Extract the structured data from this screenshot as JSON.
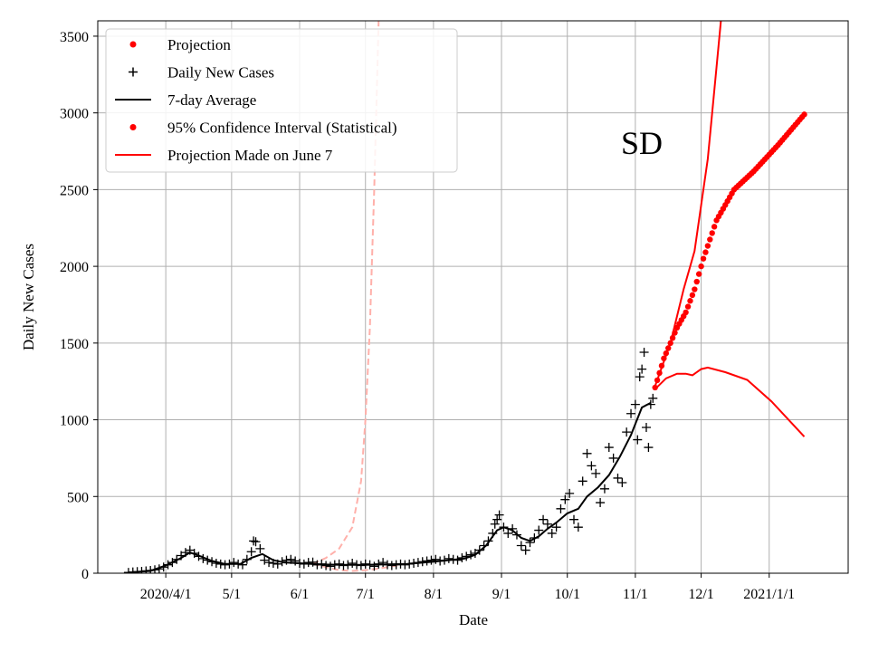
{
  "chart_data": {
    "type": "line",
    "panel_label": "SD",
    "xlabel": "Date",
    "ylabel": "Daily New Cases",
    "xlim": [
      "2020-03-01",
      "2021-02-06"
    ],
    "ylim": [
      0,
      3600
    ],
    "grid": true,
    "legend_position": "top-left",
    "x_ticks": [
      {
        "date": "2020-04-01",
        "label": "2020/4/1"
      },
      {
        "date": "2020-05-01",
        "label": "5/1"
      },
      {
        "date": "2020-06-01",
        "label": "6/1"
      },
      {
        "date": "2020-07-01",
        "label": "7/1"
      },
      {
        "date": "2020-08-01",
        "label": "8/1"
      },
      {
        "date": "2020-09-01",
        "label": "9/1"
      },
      {
        "date": "2020-10-01",
        "label": "10/1"
      },
      {
        "date": "2020-11-01",
        "label": "11/1"
      },
      {
        "date": "2020-12-01",
        "label": "12/1"
      },
      {
        "date": "2021-01-01",
        "label": "2021/1/1"
      }
    ],
    "y_ticks": [
      0,
      500,
      1000,
      1500,
      2000,
      2500,
      3000,
      3500
    ],
    "colors": {
      "projection": "#ff0000",
      "daily": "#000000",
      "average": "#000000",
      "june7": "#ffb0aa",
      "grid": "#b0b0b0"
    },
    "legend": [
      {
        "label": "Projection",
        "marker": "dot",
        "color": "#ff0000"
      },
      {
        "label": "Daily New Cases",
        "marker": "plus",
        "color": "#000000"
      },
      {
        "label": "7-day Average",
        "marker": "line",
        "color": "#000000"
      },
      {
        "label": "95% Confidence Interval (Statistical)",
        "marker": "dot",
        "color": "#ff0000"
      },
      {
        "label": "Projection Made on June 7",
        "marker": "line",
        "color": "#ff0000"
      }
    ],
    "daily_new_cases": [
      [
        "2020-03-15",
        5
      ],
      [
        "2020-03-17",
        8
      ],
      [
        "2020-03-19",
        10
      ],
      [
        "2020-03-21",
        12
      ],
      [
        "2020-03-23",
        15
      ],
      [
        "2020-03-25",
        18
      ],
      [
        "2020-03-27",
        22
      ],
      [
        "2020-03-29",
        28
      ],
      [
        "2020-03-31",
        40
      ],
      [
        "2020-04-02",
        55
      ],
      [
        "2020-04-04",
        70
      ],
      [
        "2020-04-06",
        90
      ],
      [
        "2020-04-08",
        115
      ],
      [
        "2020-04-10",
        135
      ],
      [
        "2020-04-12",
        150
      ],
      [
        "2020-04-14",
        130
      ],
      [
        "2020-04-16",
        110
      ],
      [
        "2020-04-18",
        95
      ],
      [
        "2020-04-20",
        85
      ],
      [
        "2020-04-22",
        75
      ],
      [
        "2020-04-24",
        65
      ],
      [
        "2020-04-26",
        60
      ],
      [
        "2020-04-28",
        55
      ],
      [
        "2020-04-30",
        60
      ],
      [
        "2020-05-02",
        70
      ],
      [
        "2020-05-04",
        60
      ],
      [
        "2020-05-06",
        55
      ],
      [
        "2020-05-08",
        90
      ],
      [
        "2020-05-10",
        140
      ],
      [
        "2020-05-11",
        210
      ],
      [
        "2020-05-12",
        205
      ],
      [
        "2020-05-14",
        160
      ],
      [
        "2020-05-16",
        85
      ],
      [
        "2020-05-18",
        70
      ],
      [
        "2020-05-20",
        65
      ],
      [
        "2020-05-22",
        60
      ],
      [
        "2020-05-24",
        75
      ],
      [
        "2020-05-26",
        85
      ],
      [
        "2020-05-28",
        90
      ],
      [
        "2020-05-30",
        80
      ],
      [
        "2020-06-01",
        65
      ],
      [
        "2020-06-03",
        60
      ],
      [
        "2020-06-05",
        70
      ],
      [
        "2020-06-07",
        72
      ],
      [
        "2020-06-09",
        55
      ],
      [
        "2020-06-11",
        60
      ],
      [
        "2020-06-13",
        50
      ],
      [
        "2020-06-15",
        45
      ],
      [
        "2020-06-17",
        55
      ],
      [
        "2020-06-19",
        60
      ],
      [
        "2020-06-21",
        50
      ],
      [
        "2020-06-23",
        55
      ],
      [
        "2020-06-25",
        65
      ],
      [
        "2020-06-27",
        55
      ],
      [
        "2020-06-29",
        50
      ],
      [
        "2020-07-01",
        60
      ],
      [
        "2020-07-03",
        55
      ],
      [
        "2020-07-05",
        45
      ],
      [
        "2020-07-07",
        60
      ],
      [
        "2020-07-09",
        70
      ],
      [
        "2020-07-11",
        55
      ],
      [
        "2020-07-13",
        50
      ],
      [
        "2020-07-15",
        55
      ],
      [
        "2020-07-17",
        60
      ],
      [
        "2020-07-19",
        55
      ],
      [
        "2020-07-21",
        60
      ],
      [
        "2020-07-23",
        65
      ],
      [
        "2020-07-25",
        70
      ],
      [
        "2020-07-27",
        75
      ],
      [
        "2020-07-29",
        80
      ],
      [
        "2020-07-31",
        85
      ],
      [
        "2020-08-02",
        90
      ],
      [
        "2020-08-04",
        80
      ],
      [
        "2020-08-06",
        85
      ],
      [
        "2020-08-08",
        95
      ],
      [
        "2020-08-10",
        90
      ],
      [
        "2020-08-12",
        85
      ],
      [
        "2020-08-14",
        100
      ],
      [
        "2020-08-16",
        110
      ],
      [
        "2020-08-18",
        120
      ],
      [
        "2020-08-20",
        130
      ],
      [
        "2020-08-22",
        150
      ],
      [
        "2020-08-24",
        180
      ],
      [
        "2020-08-26",
        210
      ],
      [
        "2020-08-28",
        260
      ],
      [
        "2020-08-29",
        320
      ],
      [
        "2020-08-30",
        350
      ],
      [
        "2020-08-31",
        380
      ],
      [
        "2020-09-02",
        300
      ],
      [
        "2020-09-04",
        260
      ],
      [
        "2020-09-06",
        290
      ],
      [
        "2020-09-08",
        250
      ],
      [
        "2020-09-10",
        180
      ],
      [
        "2020-09-12",
        150
      ],
      [
        "2020-09-14",
        200
      ],
      [
        "2020-09-16",
        230
      ],
      [
        "2020-09-18",
        280
      ],
      [
        "2020-09-20",
        350
      ],
      [
        "2020-09-22",
        320
      ],
      [
        "2020-09-24",
        260
      ],
      [
        "2020-09-26",
        300
      ],
      [
        "2020-09-28",
        420
      ],
      [
        "2020-09-30",
        480
      ],
      [
        "2020-10-02",
        520
      ],
      [
        "2020-10-04",
        350
      ],
      [
        "2020-10-06",
        300
      ],
      [
        "2020-10-08",
        600
      ],
      [
        "2020-10-10",
        780
      ],
      [
        "2020-10-12",
        700
      ],
      [
        "2020-10-14",
        650
      ],
      [
        "2020-10-16",
        460
      ],
      [
        "2020-10-18",
        550
      ],
      [
        "2020-10-20",
        820
      ],
      [
        "2020-10-22",
        750
      ],
      [
        "2020-10-24",
        620
      ],
      [
        "2020-10-26",
        590
      ],
      [
        "2020-10-28",
        920
      ],
      [
        "2020-10-30",
        1040
      ],
      [
        "2020-11-01",
        1100
      ],
      [
        "2020-11-02",
        870
      ],
      [
        "2020-11-03",
        1280
      ],
      [
        "2020-11-04",
        1330
      ],
      [
        "2020-11-05",
        1440
      ],
      [
        "2020-11-06",
        950
      ],
      [
        "2020-11-07",
        820
      ],
      [
        "2020-11-08",
        1100
      ],
      [
        "2020-11-09",
        1140
      ]
    ],
    "seven_day_average": [
      [
        "2020-03-15",
        5
      ],
      [
        "2020-03-25",
        15
      ],
      [
        "2020-04-01",
        50
      ],
      [
        "2020-04-08",
        100
      ],
      [
        "2020-04-12",
        135
      ],
      [
        "2020-04-16",
        115
      ],
      [
        "2020-04-22",
        80
      ],
      [
        "2020-04-28",
        60
      ],
      [
        "2020-05-05",
        60
      ],
      [
        "2020-05-10",
        100
      ],
      [
        "2020-05-15",
        125
      ],
      [
        "2020-05-20",
        85
      ],
      [
        "2020-05-25",
        70
      ],
      [
        "2020-06-01",
        65
      ],
      [
        "2020-06-10",
        58
      ],
      [
        "2020-06-20",
        55
      ],
      [
        "2020-07-01",
        55
      ],
      [
        "2020-07-10",
        58
      ],
      [
        "2020-07-20",
        60
      ],
      [
        "2020-08-01",
        75
      ],
      [
        "2020-08-10",
        88
      ],
      [
        "2020-08-15",
        95
      ],
      [
        "2020-08-20",
        120
      ],
      [
        "2020-08-25",
        180
      ],
      [
        "2020-08-30",
        280
      ],
      [
        "2020-09-02",
        300
      ],
      [
        "2020-09-06",
        280
      ],
      [
        "2020-09-10",
        230
      ],
      [
        "2020-09-14",
        210
      ],
      [
        "2020-09-18",
        240
      ],
      [
        "2020-09-22",
        290
      ],
      [
        "2020-09-26",
        330
      ],
      [
        "2020-10-01",
        390
      ],
      [
        "2020-10-06",
        420
      ],
      [
        "2020-10-10",
        500
      ],
      [
        "2020-10-15",
        560
      ],
      [
        "2020-10-20",
        640
      ],
      [
        "2020-10-25",
        760
      ],
      [
        "2020-10-30",
        900
      ],
      [
        "2020-11-04",
        1080
      ],
      [
        "2020-11-08",
        1110
      ]
    ],
    "projection": {
      "start": "2020-11-10",
      "end": "2021-01-17",
      "start_value": 1210,
      "end_value": 2990,
      "points": 69
    },
    "projection_knots": [
      [
        "2020-11-10",
        1210
      ],
      [
        "2020-11-14",
        1400
      ],
      [
        "2020-11-20",
        1600
      ],
      [
        "2020-11-24",
        1700
      ],
      [
        "2020-11-28",
        1850
      ],
      [
        "2020-12-02",
        2050
      ],
      [
        "2020-12-08",
        2300
      ],
      [
        "2020-12-16",
        2500
      ],
      [
        "2020-12-25",
        2620
      ],
      [
        "2021-01-05",
        2790
      ],
      [
        "2021-01-17",
        2990
      ]
    ],
    "ci_upper": [
      [
        "2020-11-10",
        1220
      ],
      [
        "2020-11-17",
        1500
      ],
      [
        "2020-11-23",
        1850
      ],
      [
        "2020-11-28",
        2100
      ],
      [
        "2020-12-04",
        2700
      ],
      [
        "2020-12-08",
        3300
      ],
      [
        "2020-12-10",
        3600
      ]
    ],
    "ci_lower": [
      [
        "2020-11-10",
        1200
      ],
      [
        "2020-11-15",
        1270
      ],
      [
        "2020-11-20",
        1300
      ],
      [
        "2020-11-24",
        1300
      ],
      [
        "2020-11-27",
        1290
      ],
      [
        "2020-12-01",
        1330
      ],
      [
        "2020-12-04",
        1340
      ],
      [
        "2020-12-12",
        1310
      ],
      [
        "2020-12-22",
        1260
      ],
      [
        "2021-01-02",
        1120
      ],
      [
        "2021-01-17",
        890
      ]
    ],
    "june7_projection": [
      [
        "2020-06-07",
        60
      ],
      [
        "2020-06-13",
        100
      ],
      [
        "2020-06-19",
        160
      ],
      [
        "2020-06-25",
        300
      ],
      [
        "2020-06-29",
        600
      ],
      [
        "2020-07-01",
        1000
      ],
      [
        "2020-07-03",
        1600
      ],
      [
        "2020-07-05",
        2500
      ],
      [
        "2020-07-07",
        3600
      ]
    ],
    "june7_lower": [
      [
        "2020-06-07",
        60
      ],
      [
        "2020-06-13",
        40
      ],
      [
        "2020-06-19",
        20
      ],
      [
        "2020-06-25",
        15
      ],
      [
        "2020-07-01",
        20
      ],
      [
        "2020-07-07",
        30
      ],
      [
        "2020-07-13",
        45
      ],
      [
        "2020-07-17",
        55
      ]
    ]
  }
}
